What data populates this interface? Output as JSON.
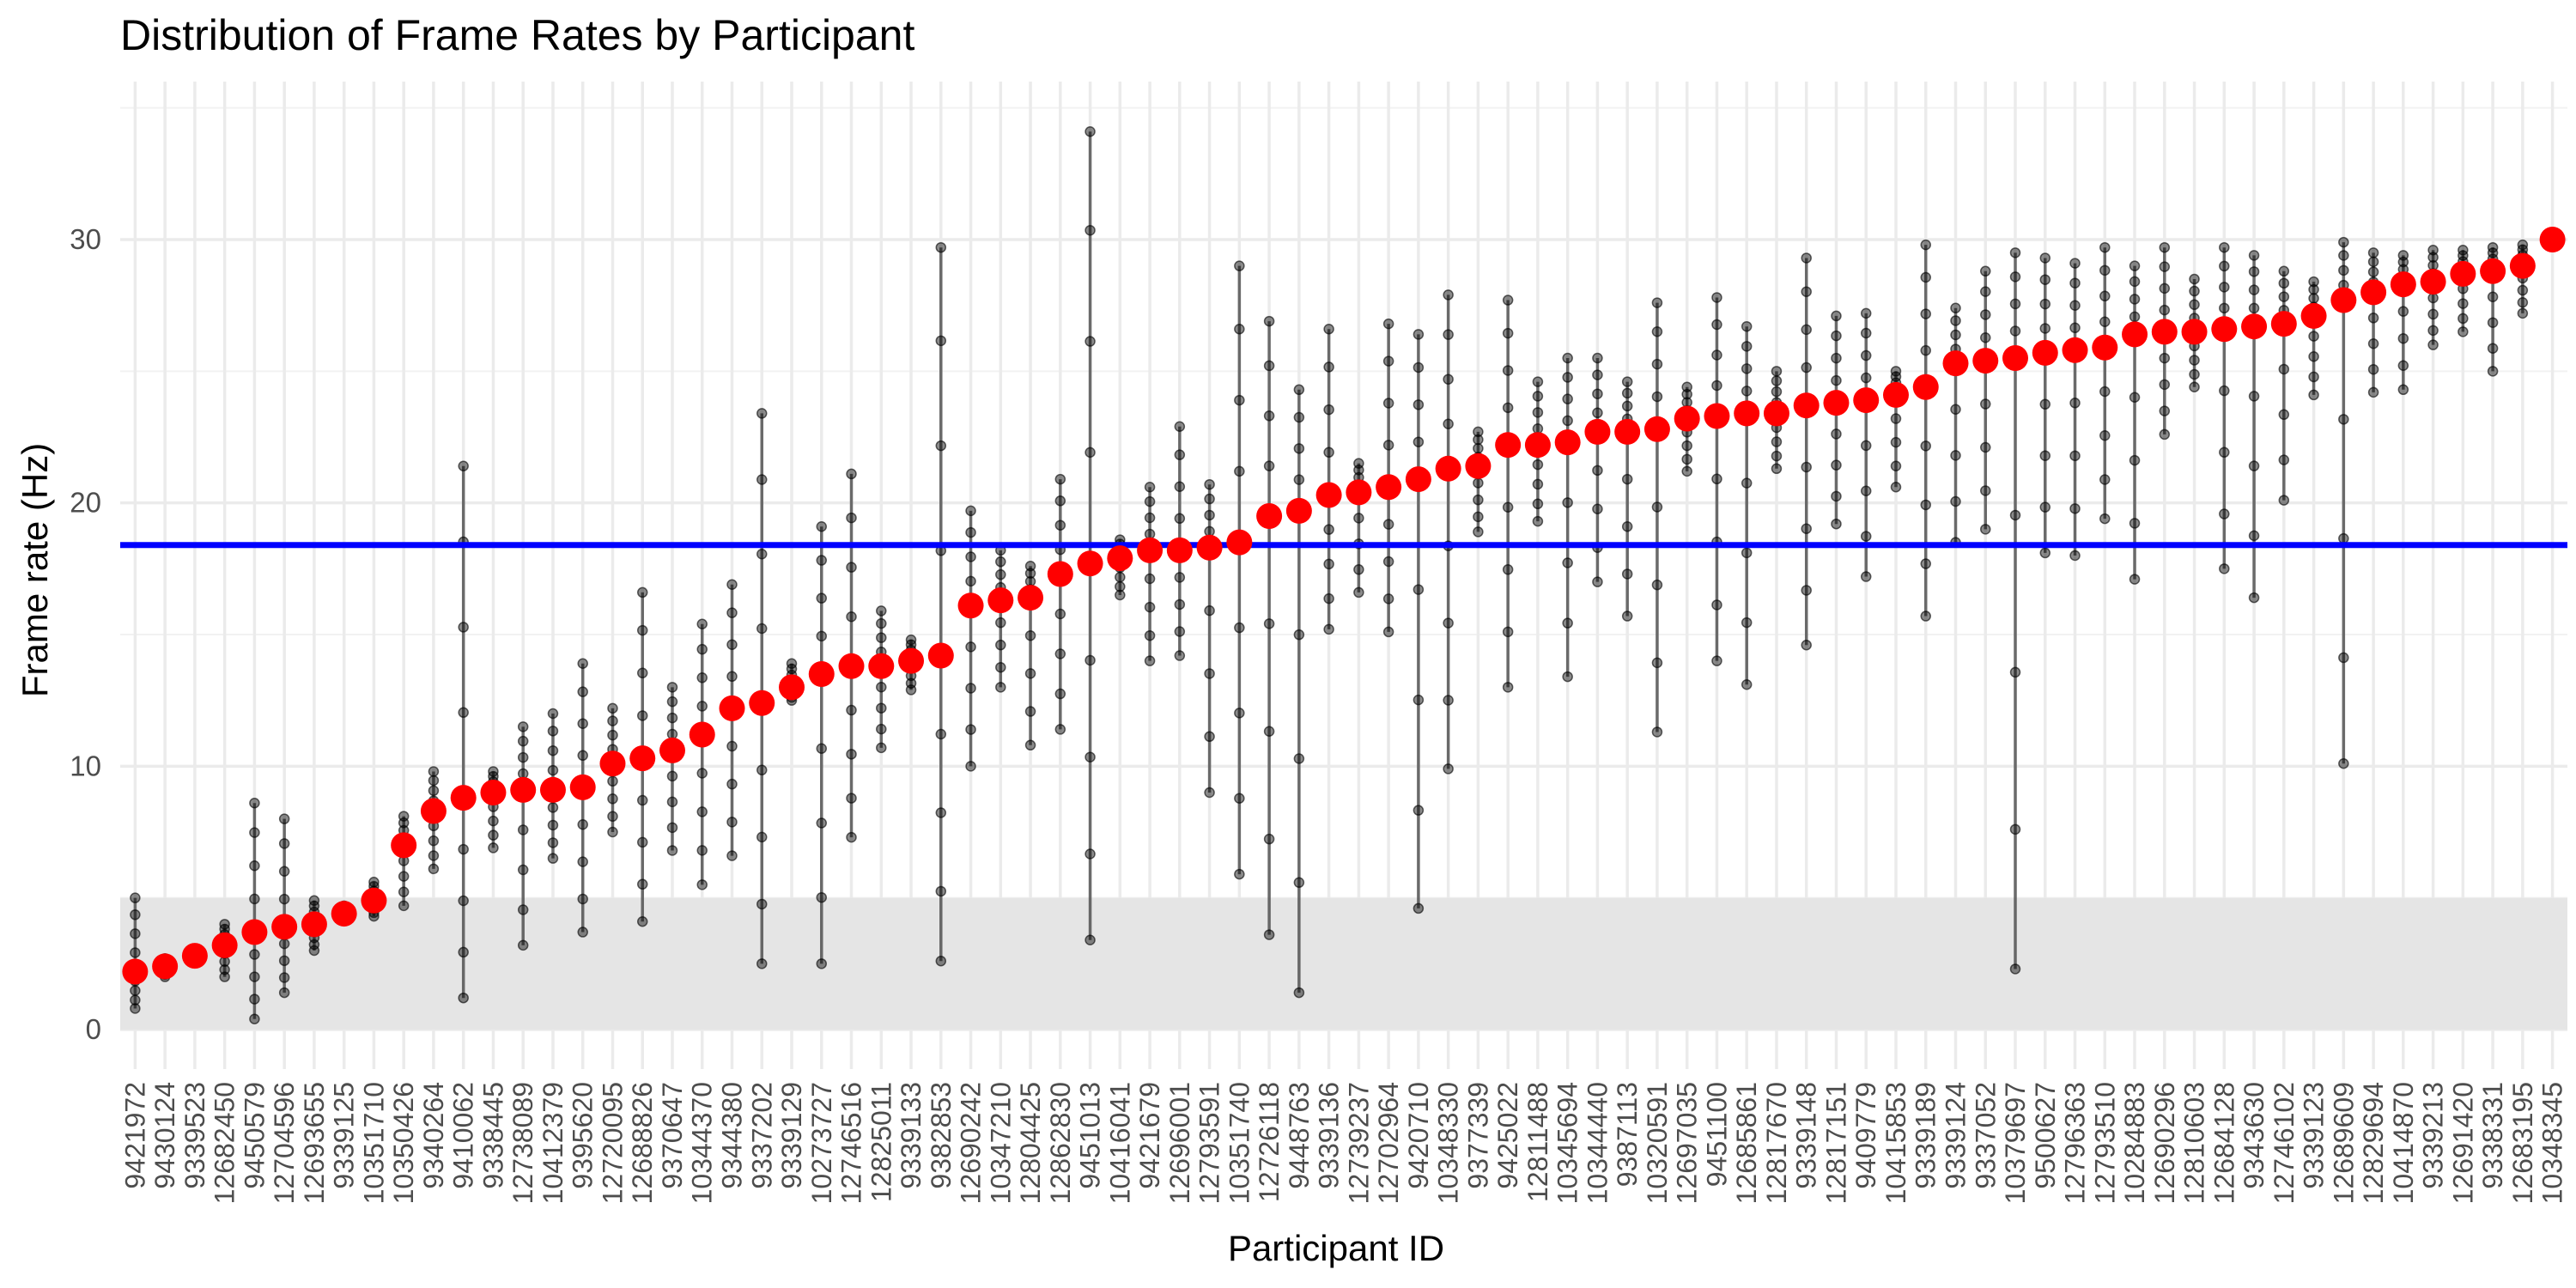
{
  "chart_data": {
    "type": "scatter",
    "title": "Distribution of Frame Rates by Participant",
    "xlabel": "Participant ID",
    "ylabel": "Frame rate (Hz)",
    "ylim": [
      -1.5,
      36
    ],
    "y_ticks": [
      0,
      10,
      20,
      30
    ],
    "grid": true,
    "reference_line": {
      "value": 18.4,
      "color": "#0000ff"
    },
    "shaded_band": {
      "from": 0,
      "to": 5,
      "color": "#e5e5e5"
    },
    "colors": {
      "mean": "#ff0000",
      "range": "#000000",
      "points": "#000000"
    },
    "categories": [
      "9421972",
      "9430124",
      "9339523",
      "12682450",
      "9450579",
      "12704596",
      "12693655",
      "9339125",
      "10351710",
      "10350426",
      "9340264",
      "9410062",
      "9338445",
      "12738089",
      "10412379",
      "9395620",
      "12720095",
      "12688826",
      "9370647",
      "10344370",
      "9344380",
      "9337202",
      "9339129",
      "10273727",
      "12746516",
      "12825011",
      "9339133",
      "9382853",
      "12690242",
      "10347210",
      "12804425",
      "12862830",
      "9451013",
      "10416041",
      "9421679",
      "12696001",
      "12793591",
      "10351740",
      "12726118",
      "9448763",
      "9339136",
      "12739237",
      "12702964",
      "9420710",
      "10348330",
      "9377339",
      "9425022",
      "12811488",
      "10345694",
      "10344440",
      "9387113",
      "10320591",
      "12697035",
      "9451100",
      "12685861",
      "12817670",
      "9339148",
      "12817151",
      "9409779",
      "10415853",
      "9339189",
      "9339124",
      "9337052",
      "10379697",
      "9500627",
      "12796363",
      "12793510",
      "10284883",
      "12690296",
      "12810603",
      "12684128",
      "9343630",
      "12746102",
      "9339123",
      "12689609",
      "12829694",
      "10414870",
      "9339213",
      "12691420",
      "9338331",
      "12683195",
      "10348345"
    ],
    "series": [
      {
        "name": "",
        "role": "mean",
        "values": [
          2.2,
          2.4,
          2.8,
          3.2,
          3.7,
          3.9,
          4.0,
          4.4,
          4.9,
          7.0,
          8.3,
          8.8,
          9.0,
          9.1,
          9.1,
          9.2,
          10.1,
          10.3,
          10.6,
          11.2,
          12.2,
          12.4,
          13.0,
          13.5,
          13.8,
          13.8,
          14.0,
          14.2,
          16.1,
          16.3,
          16.4,
          17.3,
          17.7,
          17.9,
          18.2,
          18.2,
          18.3,
          18.5,
          19.5,
          19.7,
          20.3,
          20.4,
          20.6,
          20.9,
          21.3,
          21.4,
          22.2,
          22.2,
          22.3,
          22.7,
          22.7,
          22.8,
          23.2,
          23.3,
          23.4,
          23.4,
          23.7,
          23.8,
          23.9,
          24.1,
          24.4,
          25.3,
          25.4,
          25.5,
          25.7,
          25.8,
          25.9,
          26.4,
          26.5,
          26.5,
          26.6,
          26.7,
          26.8,
          27.1,
          27.7,
          28.0,
          28.3,
          28.4,
          28.7,
          28.8,
          29.0,
          30.0
        ]
      },
      {
        "name": "",
        "role": "min",
        "values": [
          0.8,
          2.0,
          2.6,
          2.0,
          0.4,
          1.4,
          3.0,
          4.2,
          4.3,
          4.7,
          6.1,
          1.2,
          6.9,
          3.2,
          6.5,
          3.7,
          7.5,
          4.1,
          6.8,
          5.5,
          6.6,
          2.5,
          12.5,
          2.5,
          7.3,
          10.7,
          12.9,
          2.6,
          10.0,
          13.0,
          10.8,
          11.4,
          3.4,
          16.5,
          14.0,
          14.2,
          9.0,
          5.9,
          3.6,
          1.4,
          15.2,
          16.6,
          15.1,
          4.6,
          9.9,
          18.9,
          13.0,
          19.3,
          13.4,
          17.0,
          15.7,
          11.3,
          21.2,
          14.0,
          13.1,
          21.3,
          14.6,
          19.2,
          17.2,
          20.6,
          15.7,
          18.5,
          19.0,
          2.3,
          18.1,
          18.0,
          19.4,
          17.1,
          22.6,
          24.4,
          17.5,
          16.4,
          20.1,
          24.1,
          10.1,
          24.2,
          24.3,
          26.0,
          26.5,
          25.0,
          27.2,
          30.0
        ]
      },
      {
        "name": "",
        "role": "max",
        "values": [
          5.0,
          2.7,
          3.0,
          4.0,
          8.6,
          8.0,
          4.9,
          4.7,
          5.6,
          8.1,
          9.8,
          21.4,
          9.8,
          11.5,
          12.0,
          13.9,
          12.2,
          16.6,
          13.0,
          15.4,
          16.9,
          23.4,
          13.9,
          19.1,
          21.1,
          15.9,
          14.8,
          29.7,
          19.7,
          18.2,
          17.6,
          20.9,
          34.1,
          18.6,
          20.6,
          22.9,
          20.7,
          29.0,
          26.9,
          24.3,
          26.6,
          21.5,
          26.8,
          26.4,
          27.9,
          22.7,
          27.7,
          24.6,
          25.5,
          25.5,
          24.6,
          27.6,
          24.4,
          27.8,
          26.7,
          25.0,
          29.3,
          27.1,
          27.2,
          25.0,
          29.8,
          27.4,
          28.8,
          29.5,
          29.3,
          29.1,
          29.7,
          29.0,
          29.7,
          28.5,
          29.7,
          29.4,
          28.8,
          28.4,
          29.9,
          29.5,
          29.4,
          29.6,
          29.6,
          29.7,
          29.8,
          30.1
        ]
      }
    ]
  }
}
